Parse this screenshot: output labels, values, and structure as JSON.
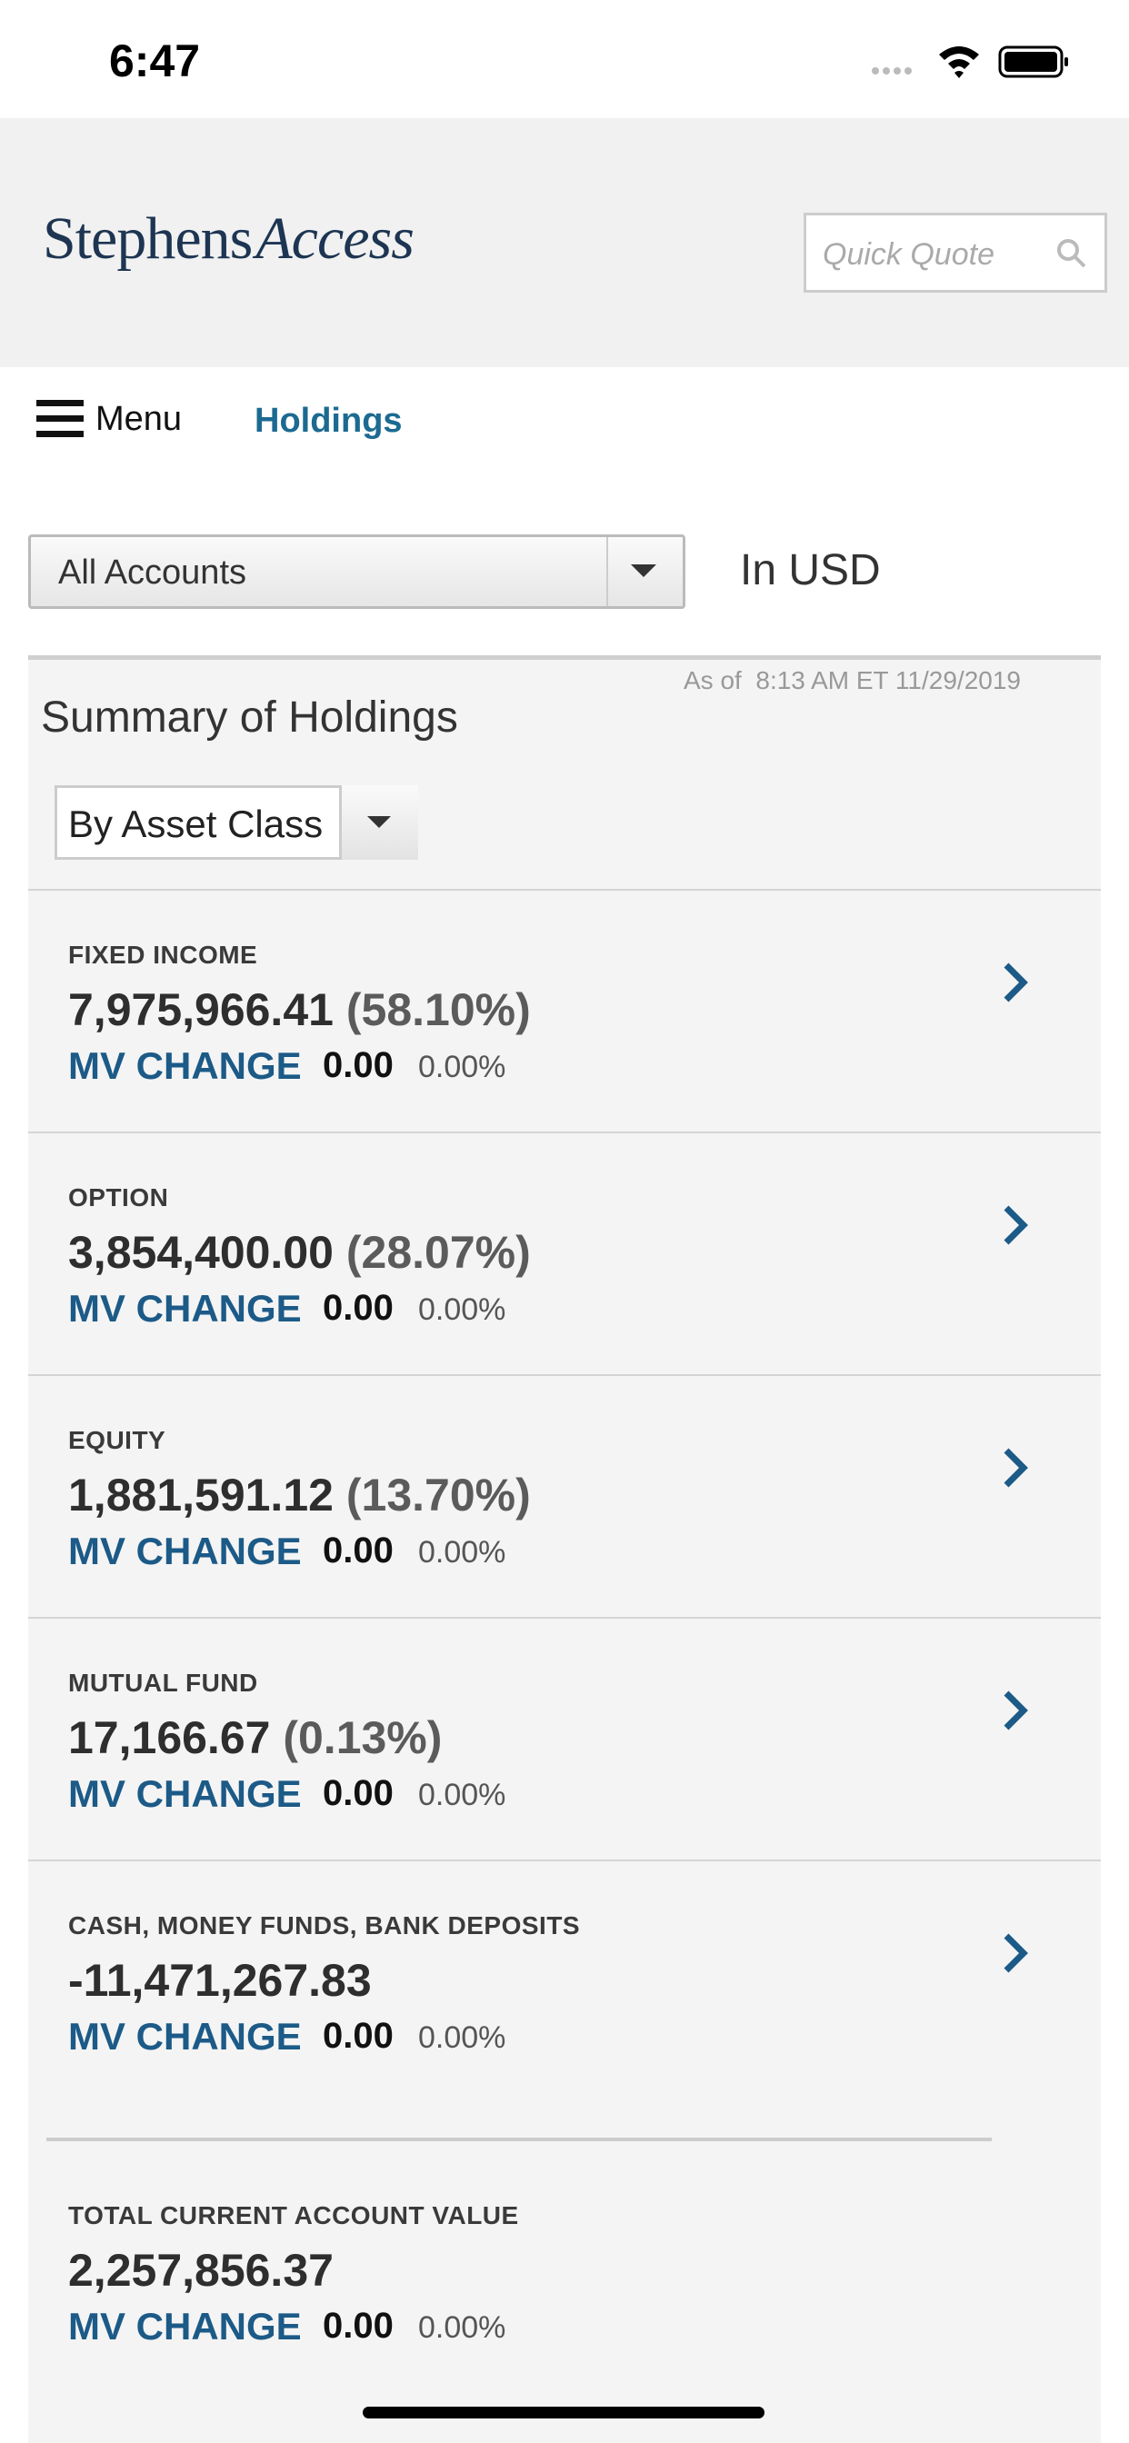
{
  "status_bar": {
    "time": "6:47"
  },
  "header": {
    "brand_main": "Stephens",
    "brand_sub": "Access",
    "search_placeholder": "Quick Quote"
  },
  "nav": {
    "menu": "Menu",
    "current": "Holdings"
  },
  "filters": {
    "account": "All Accounts",
    "currency": "In USD"
  },
  "summary": {
    "as_of": "As of  8:13 AM ET 11/29/2019",
    "title": "Summary of Holdings",
    "group_by": "By Asset Class",
    "rows": [
      {
        "label": "FIXED INCOME",
        "value": "7,975,966.41",
        "percent": "(58.10%)",
        "mv_label": "MV CHANGE",
        "mv_value": "0.00",
        "mv_percent": "0.00%"
      },
      {
        "label": "OPTION",
        "value": "3,854,400.00",
        "percent": "(28.07%)",
        "mv_label": "MV CHANGE",
        "mv_value": "0.00",
        "mv_percent": "0.00%"
      },
      {
        "label": "EQUITY",
        "value": "1,881,591.12",
        "percent": "(13.70%)",
        "mv_label": "MV CHANGE",
        "mv_value": "0.00",
        "mv_percent": "0.00%"
      },
      {
        "label": "MUTUAL FUND",
        "value": "17,166.67",
        "percent": "(0.13%)",
        "mv_label": "MV CHANGE",
        "mv_value": "0.00",
        "mv_percent": "0.00%"
      },
      {
        "label": "CASH, MONEY FUNDS, BANK DEPOSITS",
        "value": "-11,471,267.83",
        "mv_label": "MV CHANGE",
        "mv_value": "0.00",
        "mv_percent": "0.00%"
      }
    ],
    "total": {
      "label": "TOTAL CURRENT ACCOUNT VALUE",
      "value": "2,257,856.37",
      "mv_label": "MV CHANGE",
      "mv_value": "0.00",
      "mv_percent": "0.00%"
    }
  }
}
